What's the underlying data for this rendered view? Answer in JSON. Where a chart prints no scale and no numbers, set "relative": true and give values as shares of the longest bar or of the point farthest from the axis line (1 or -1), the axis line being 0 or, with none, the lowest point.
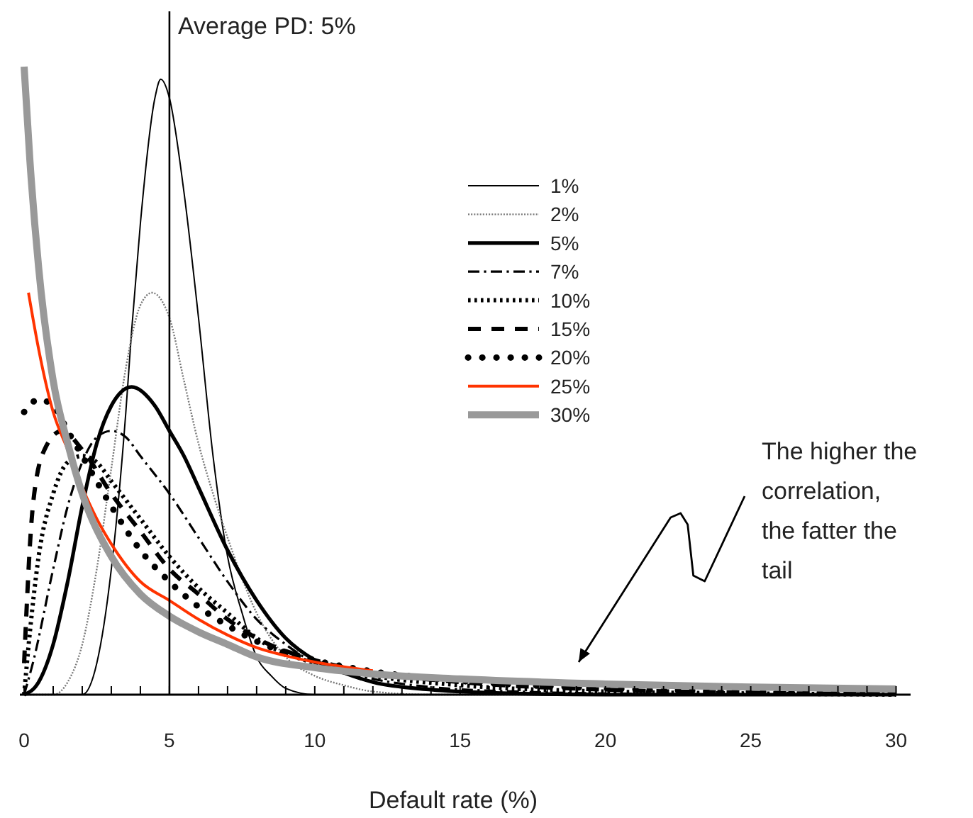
{
  "chart_data": {
    "type": "line",
    "relative": true,
    "xlabel": "Default rate (%)",
    "xlim": [
      0,
      30.5
    ],
    "xticks": [
      0,
      {
        "value": 1,
        "label": null
      },
      {
        "value": 2,
        "label": null
      },
      {
        "value": 3,
        "label": null
      },
      {
        "value": 4,
        "label": null
      },
      5,
      {
        "value": 6,
        "label": null
      },
      {
        "value": 7,
        "label": null
      },
      {
        "value": 8,
        "label": null
      },
      {
        "value": 9,
        "label": null
      },
      10,
      {
        "value": 11,
        "label": null
      },
      {
        "value": 12,
        "label": null
      },
      {
        "value": 13,
        "label": null
      },
      {
        "value": 14,
        "label": null
      },
      15,
      {
        "value": 16,
        "label": null
      },
      {
        "value": 17,
        "label": null
      },
      {
        "value": 18,
        "label": null
      },
      {
        "value": 19,
        "label": null
      },
      20,
      {
        "value": 21,
        "label": null
      },
      {
        "value": 22,
        "label": null
      },
      {
        "value": 23,
        "label": null
      },
      {
        "value": 24,
        "label": null
      },
      25,
      {
        "value": 26,
        "label": null
      },
      {
        "value": 27,
        "label": null
      },
      {
        "value": 28,
        "label": null
      },
      {
        "value": 29,
        "label": null
      },
      30
    ],
    "legend": "top right",
    "grid": false,
    "ref_lines": [
      {
        "axis": "x",
        "value": 5,
        "label": "Average PD: 5%",
        "color": "#000000"
      }
    ],
    "annotations": [
      "The higher the correlation, the fatter the tail"
    ],
    "series": [
      {
        "name": "1%",
        "color": "#000000",
        "line_style": "solid",
        "x": [
          0,
          2,
          2.5,
          3,
          3.5,
          3.7,
          4,
          4.5,
          4.7,
          5,
          5.5,
          6,
          6.5,
          7,
          7.5,
          8,
          8.5,
          9,
          10,
          30
        ],
        "values": [
          0,
          0,
          0.05,
          0.2,
          0.45,
          0.58,
          0.75,
          0.95,
          0.98,
          0.95,
          0.8,
          0.6,
          0.38,
          0.22,
          0.13,
          0.06,
          0.03,
          0.01,
          0,
          0
        ]
      },
      {
        "name": "2%",
        "color": "#777777",
        "line_style": "dotted",
        "x": [
          0,
          1,
          1.5,
          2,
          2.5,
          3,
          3.5,
          4,
          4.4,
          5,
          5.5,
          6,
          6.5,
          7,
          8,
          9,
          10,
          11,
          12,
          14,
          30
        ],
        "values": [
          0,
          0,
          0.02,
          0.08,
          0.2,
          0.36,
          0.52,
          0.62,
          0.64,
          0.6,
          0.5,
          0.4,
          0.32,
          0.25,
          0.13,
          0.06,
          0.03,
          0.015,
          0.005,
          0,
          0
        ]
      },
      {
        "name": "5%",
        "color": "#000000",
        "line_style": "solid",
        "x": [
          0,
          0.5,
          1,
          1.5,
          2,
          2.5,
          3,
          3.7,
          4.5,
          5,
          5.5,
          6,
          7,
          8,
          9,
          10,
          11,
          12,
          14,
          16,
          20,
          30
        ],
        "values": [
          0,
          0.02,
          0.08,
          0.18,
          0.3,
          0.4,
          0.46,
          0.49,
          0.46,
          0.42,
          0.38,
          0.33,
          0.23,
          0.15,
          0.09,
          0.055,
          0.035,
          0.02,
          0.008,
          0.003,
          0,
          0
        ]
      },
      {
        "name": "7%",
        "color": "#000000",
        "line_style": "dashdot",
        "x": [
          0,
          0.3,
          1,
          1.5,
          2,
          2.5,
          3,
          3.5,
          4,
          5,
          6,
          7,
          8,
          9,
          10,
          12,
          14,
          17,
          20,
          30
        ],
        "values": [
          0,
          0.05,
          0.2,
          0.3,
          0.37,
          0.41,
          0.42,
          0.41,
          0.38,
          0.32,
          0.25,
          0.18,
          0.12,
          0.08,
          0.05,
          0.025,
          0.012,
          0.005,
          0.002,
          0
        ]
      },
      {
        "name": "10%",
        "color": "#000000",
        "line_style": "dotted",
        "x": [
          0,
          0.2,
          0.5,
          1,
          1.5,
          2,
          2.5,
          3,
          4,
          5,
          6,
          7,
          8,
          10,
          12,
          15,
          20,
          25,
          30
        ],
        "values": [
          0,
          0.1,
          0.22,
          0.32,
          0.37,
          0.38,
          0.37,
          0.34,
          0.28,
          0.22,
          0.17,
          0.13,
          0.09,
          0.05,
          0.03,
          0.015,
          0.005,
          0.002,
          0
        ]
      },
      {
        "name": "15%",
        "color": "#000000",
        "line_style": "dashed",
        "x": [
          0,
          0.3,
          0.7,
          1.3,
          2,
          3,
          4,
          5,
          6,
          7,
          8,
          10,
          12,
          15,
          20,
          25,
          30
        ],
        "values": [
          0.05,
          0.3,
          0.39,
          0.42,
          0.39,
          0.32,
          0.26,
          0.2,
          0.16,
          0.12,
          0.09,
          0.055,
          0.035,
          0.02,
          0.008,
          0.003,
          0.001
        ]
      },
      {
        "name": "20%",
        "color": "#000000",
        "line_style": "dotted",
        "x": [
          0,
          0.5,
          1,
          1.5,
          2,
          3,
          4,
          5,
          6,
          7,
          8,
          10,
          12,
          15,
          20,
          25,
          30
        ],
        "values": [
          0.45,
          0.47,
          0.46,
          0.42,
          0.38,
          0.3,
          0.23,
          0.18,
          0.14,
          0.11,
          0.085,
          0.055,
          0.037,
          0.022,
          0.01,
          0.005,
          0.002
        ]
      },
      {
        "name": "25%",
        "color": "#ff3300",
        "line_style": "solid",
        "x": [
          0.15,
          0.5,
          1,
          1.5,
          2,
          2.5,
          3,
          4,
          5,
          6,
          7,
          8,
          9,
          10,
          12
        ],
        "values": [
          0.64,
          0.55,
          0.45,
          0.39,
          0.33,
          0.28,
          0.24,
          0.18,
          0.15,
          0.12,
          0.095,
          0.075,
          0.062,
          0.052,
          0.038
        ]
      },
      {
        "name": "30%",
        "color": "#999999",
        "line_style": "solid",
        "x": [
          0,
          0.2,
          0.5,
          1,
          1.5,
          2,
          3,
          4,
          5,
          6,
          7,
          8,
          10,
          12,
          15,
          20,
          25,
          30
        ],
        "values": [
          1,
          0.85,
          0.68,
          0.5,
          0.4,
          0.32,
          0.22,
          0.16,
          0.125,
          0.1,
          0.08,
          0.06,
          0.043,
          0.033,
          0.025,
          0.017,
          0.012,
          0.009
        ]
      }
    ]
  }
}
